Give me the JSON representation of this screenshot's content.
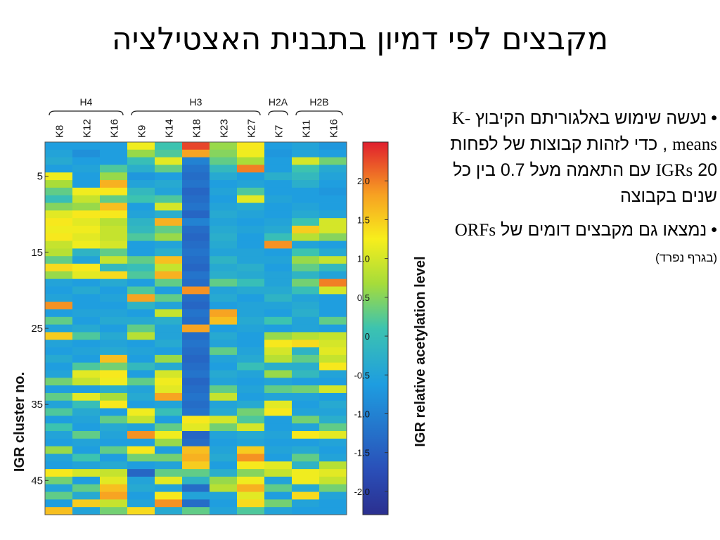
{
  "slide": {
    "title": "מקבצים לפי דמיון בתבנית האצטילציה",
    "bullets": [
      {
        "dot": "•",
        "t1": "נעשה שימוש באלגוריתם הקיבוץ",
        "kmeans": "K-means",
        "t2": ", כדי לזהות קבוצות של לפחות",
        "num": "20",
        "igrs": "IGRs",
        "t3": "עם התאמה מעל 0.7 בין כל שנים בקבוצה"
      },
      {
        "dot": "•",
        "t1": "נמצאו גם מקבצים דומים של",
        "orfs": "ORFs",
        "note": "(בגרף נפרד)"
      }
    ]
  },
  "chart_data": {
    "type": "heatmap",
    "ylabel": "IGR cluster no.",
    "colorbar_label": "IGR relative acetylation level",
    "groups": [
      {
        "name": "H4",
        "columns": [
          "K8",
          "K12",
          "K16"
        ]
      },
      {
        "name": "H3",
        "columns": [
          "K9",
          "K14",
          "K18",
          "K23",
          "K27"
        ]
      },
      {
        "name": "H2A",
        "columns": [
          "K7"
        ]
      },
      {
        "name": "H2B",
        "columns": [
          "K11",
          "K16"
        ]
      }
    ],
    "columns": [
      "K8",
      "K12",
      "K16",
      "K9",
      "K14",
      "K18",
      "K23",
      "K27",
      "K7",
      "K11",
      "K16"
    ],
    "y_ticks": [
      5,
      15,
      25,
      35,
      45
    ],
    "color_range": [
      -2.3,
      2.5
    ],
    "colorbar_ticks": [
      2.0,
      1.5,
      1.0,
      0.5,
      0,
      -0.5,
      -1.0,
      -1.5,
      -2.0
    ],
    "colorbar_tick_labels": [
      "2.0",
      "1.5",
      "1.0",
      "0.5",
      "0",
      "-0.5",
      "-1.0",
      "-1.5",
      "-2.0"
    ],
    "values": [
      [
        -0.6,
        -0.6,
        -0.6,
        1.2,
        0.1,
        2.3,
        0.6,
        1.3,
        -0.6,
        -0.5,
        -0.7
      ],
      [
        -0.5,
        -0.8,
        -0.6,
        0.6,
        0.2,
        1.8,
        0.5,
        1.2,
        -0.7,
        -0.5,
        -0.6
      ],
      [
        -0.4,
        -0.6,
        -0.6,
        0.0,
        1.1,
        -1.0,
        0.3,
        0.7,
        -0.6,
        1.0,
        0.4
      ],
      [
        -0.6,
        -0.5,
        0.2,
        -0.3,
        0.3,
        -1.2,
        -0.1,
        2.0,
        -0.6,
        0.1,
        -0.4
      ],
      [
        1.2,
        -0.6,
        0.6,
        -0.7,
        -0.6,
        -1.3,
        -0.4,
        -0.6,
        -0.3,
        -0.1,
        -0.5
      ],
      [
        0.7,
        -0.6,
        1.7,
        -0.5,
        -0.4,
        -1.2,
        -0.6,
        -0.5,
        -0.6,
        -0.3,
        -0.6
      ],
      [
        0.3,
        1.2,
        1.3,
        -0.1,
        -0.5,
        -1.4,
        -0.5,
        0.2,
        -0.6,
        -0.6,
        -0.7
      ],
      [
        0.0,
        0.9,
        0.3,
        0.1,
        0.2,
        -1.3,
        -0.6,
        1.1,
        -0.5,
        -0.6,
        -0.6
      ],
      [
        0.5,
        0.6,
        1.6,
        -0.6,
        1.0,
        -1.2,
        -0.5,
        -0.4,
        -0.6,
        -0.5,
        -0.6
      ],
      [
        1.1,
        1.3,
        1.3,
        -0.5,
        -0.3,
        -1.4,
        -0.4,
        -0.5,
        -0.6,
        -0.4,
        -0.5
      ],
      [
        1.3,
        1.1,
        0.8,
        -0.2,
        1.7,
        -1.0,
        -0.5,
        -0.6,
        -0.5,
        0.1,
        1.0
      ],
      [
        1.2,
        1.2,
        0.9,
        -0.1,
        0.3,
        -1.3,
        -0.4,
        -0.5,
        -0.4,
        1.5,
        1.0
      ],
      [
        1.3,
        1.1,
        0.9,
        0.2,
        0.6,
        -1.4,
        -0.3,
        -0.6,
        0.0,
        0.8,
        0.5
      ],
      [
        0.9,
        1.2,
        1.0,
        -0.6,
        -0.5,
        -1.3,
        -0.4,
        -0.6,
        1.9,
        -0.5,
        -0.6
      ],
      [
        0.8,
        -0.2,
        0.3,
        -0.6,
        -0.3,
        -1.2,
        -0.5,
        -0.5,
        -0.6,
        0.1,
        -0.4
      ],
      [
        0.3,
        -0.5,
        0.9,
        0.3,
        1.6,
        -1.3,
        -0.2,
        -0.5,
        -0.5,
        0.6,
        0.9
      ],
      [
        1.4,
        1.3,
        -0.1,
        0.0,
        0.9,
        -1.4,
        -0.4,
        -0.3,
        -0.6,
        0.3,
        -0.1
      ],
      [
        0.6,
        1.1,
        1.4,
        0.2,
        1.7,
        -1.2,
        -0.3,
        -0.4,
        -0.5,
        -0.2,
        -0.5
      ],
      [
        -0.5,
        -0.6,
        -0.4,
        -0.6,
        0.3,
        -1.3,
        0.3,
        0.0,
        -0.5,
        0.4,
        2.0
      ],
      [
        -0.6,
        -0.4,
        -0.6,
        0.2,
        -0.6,
        1.9,
        -0.5,
        -0.4,
        -0.4,
        0.0,
        1.0
      ],
      [
        -0.5,
        -0.6,
        -0.5,
        1.8,
        0.3,
        -1.3,
        -0.4,
        -0.6,
        -0.2,
        -0.5,
        -0.6
      ],
      [
        1.9,
        -0.6,
        -0.6,
        -0.2,
        -0.5,
        -1.4,
        -0.6,
        -0.5,
        -0.5,
        -0.4,
        -0.6
      ],
      [
        -0.6,
        -0.5,
        -0.5,
        -0.6,
        0.9,
        -1.2,
        1.8,
        -0.5,
        -0.6,
        -0.3,
        -0.6
      ],
      [
        0.3,
        -0.6,
        -0.4,
        -0.4,
        -0.3,
        -1.3,
        1.6,
        -0.4,
        0.1,
        -0.5,
        0.3
      ],
      [
        -0.5,
        -0.4,
        -0.6,
        0.3,
        -0.5,
        1.8,
        -0.6,
        -0.5,
        -0.6,
        -0.5,
        -0.6
      ],
      [
        1.5,
        0.2,
        -0.4,
        0.8,
        -0.5,
        -1.3,
        -0.4,
        -0.6,
        0.6,
        0.8,
        0.9
      ],
      [
        -0.5,
        -0.6,
        -0.5,
        -0.6,
        -0.4,
        -1.2,
        -0.5,
        -0.6,
        1.3,
        1.4,
        1.0
      ],
      [
        -0.6,
        -0.5,
        -0.4,
        -0.5,
        -0.6,
        -1.3,
        0.3,
        -0.5,
        1.0,
        -0.2,
        1.1
      ],
      [
        -0.4,
        -0.6,
        1.6,
        -0.6,
        0.6,
        -1.4,
        -0.5,
        -0.4,
        0.8,
        0.3,
        0.9
      ],
      [
        -0.6,
        0.2,
        0.4,
        -0.1,
        -0.4,
        -1.3,
        -0.6,
        0.0,
        -0.3,
        -0.3,
        1.3
      ],
      [
        -0.5,
        1.1,
        1.3,
        -0.6,
        1.0,
        -1.2,
        -0.4,
        -0.5,
        0.6,
        -0.1,
        -0.5
      ],
      [
        0.4,
        0.9,
        1.2,
        0.3,
        1.2,
        -1.4,
        -0.5,
        -0.6,
        -0.5,
        -0.6,
        -0.6
      ],
      [
        -0.6,
        -0.6,
        -0.3,
        -0.5,
        1.1,
        -1.3,
        0.3,
        -0.5,
        0.3,
        0.4,
        1.0
      ],
      [
        0.3,
        1.1,
        0.7,
        -0.4,
        1.8,
        -1.2,
        0.9,
        -0.6,
        -0.5,
        -0.5,
        -0.6
      ],
      [
        -0.5,
        0.0,
        1.3,
        -0.6,
        -0.5,
        -1.3,
        -0.5,
        -0.4,
        1.1,
        -0.6,
        -0.4
      ],
      [
        0.2,
        -0.4,
        -0.6,
        1.2,
        0.0,
        -1.2,
        -0.4,
        0.4,
        1.3,
        -0.5,
        -0.5
      ],
      [
        -0.6,
        -0.5,
        0.3,
        0.9,
        -0.6,
        1.3,
        1.0,
        0.2,
        -0.6,
        0.4,
        -0.3
      ],
      [
        0.1,
        -0.6,
        -0.4,
        -0.5,
        0.3,
        1.1,
        0.4,
        1.0,
        -0.6,
        -0.5,
        0.3
      ],
      [
        -0.5,
        0.3,
        -0.5,
        1.9,
        1.2,
        -1.4,
        -0.5,
        -0.4,
        -0.5,
        1.3,
        1.1
      ],
      [
        -0.6,
        -0.5,
        -0.6,
        -0.6,
        0.6,
        -1.3,
        -0.6,
        -0.5,
        -0.6,
        -0.6,
        -0.5
      ],
      [
        0.6,
        -0.6,
        0.3,
        1.3,
        -0.6,
        1.6,
        -0.5,
        1.5,
        -0.5,
        -0.4,
        -0.6
      ],
      [
        -0.5,
        0.1,
        -0.6,
        0.4,
        0.4,
        1.7,
        -0.4,
        1.9,
        -0.6,
        0.3,
        -0.5
      ],
      [
        -0.6,
        -0.5,
        -0.4,
        -0.6,
        -0.5,
        1.5,
        -0.6,
        1.3,
        1.1,
        -0.2,
        0.8
      ],
      [
        1.3,
        1.0,
        0.9,
        -1.4,
        0.3,
        0.3,
        -0.3,
        0.5,
        0.9,
        1.2,
        1.1
      ],
      [
        0.4,
        -0.6,
        1.1,
        -0.5,
        1.1,
        -0.2,
        0.6,
        1.2,
        -0.5,
        1.2,
        0.9
      ],
      [
        -0.5,
        0.3,
        1.6,
        -0.4,
        -0.5,
        -1.3,
        0.8,
        1.7,
        0.3,
        -0.4,
        0.4
      ],
      [
        0.3,
        -0.4,
        1.8,
        -0.6,
        1.3,
        -0.5,
        -0.5,
        1.1,
        -0.6,
        1.4,
        -0.5
      ],
      [
        -0.6,
        1.5,
        0.9,
        -0.5,
        1.9,
        -1.3,
        -0.6,
        1.4,
        0.4,
        -0.5,
        -0.6
      ],
      [
        1.6,
        -0.5,
        0.4,
        1.4,
        -0.4,
        0.3,
        -0.5,
        0.2,
        -0.5,
        -0.6,
        -0.6
      ]
    ]
  }
}
